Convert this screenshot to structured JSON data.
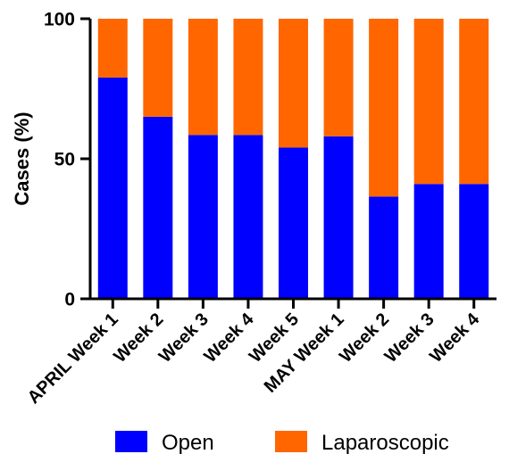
{
  "chart_data": {
    "type": "bar",
    "stacked": true,
    "title": "",
    "xlabel": "",
    "ylabel": "Cases (%)",
    "ylim": [
      0,
      100
    ],
    "yticks": [
      "0",
      "50",
      "100"
    ],
    "categories": [
      "APRIL Week 1",
      "Week 2",
      "Week 3",
      "Week 4",
      "Week 5",
      "MAY Week 1",
      "Week 2",
      "Week 3",
      "Week 4"
    ],
    "series": [
      {
        "name": "Open",
        "color": "#0000ff",
        "values": [
          79,
          65,
          58.5,
          58.5,
          54,
          58,
          36.5,
          41,
          41
        ]
      },
      {
        "name": "Laparoscopic",
        "color": "#ff6600",
        "values": [
          21,
          35,
          41.5,
          41.5,
          46,
          42,
          63.5,
          59,
          59
        ]
      }
    ],
    "grid": false,
    "legend": "bottom"
  }
}
